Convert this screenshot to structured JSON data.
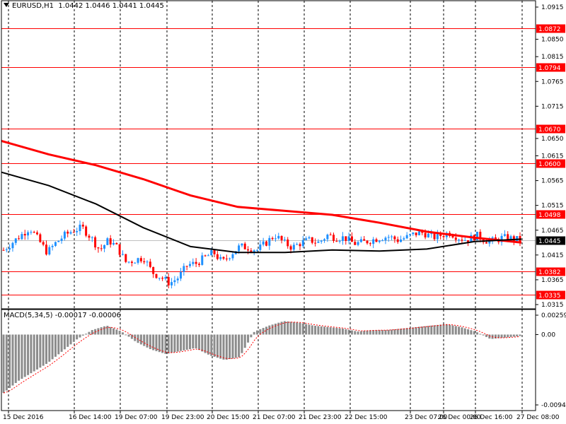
{
  "header": {
    "symbol_tf": "EURUSD,H1",
    "ohlc": "1.0442 1.0446 1.0441 1.0445"
  },
  "macd_header": "MACD(5,34,5) -0.00017 -0.00006",
  "chart_data": [
    {
      "type": "candlestick",
      "symbol": "EURUSD",
      "timeframe": "H1",
      "ylim": [
        1.0315,
        1.0915
      ],
      "y_ticks": [
        "1.0915",
        "1.0850",
        "1.0815",
        "1.0765",
        "1.0715",
        "1.0650",
        "1.0615",
        "1.0565",
        "1.0515",
        "1.0465",
        "1.0415",
        "1.0365",
        "1.0315"
      ],
      "x_labels": [
        "15 Dec 2016",
        "16 Dec 14:00",
        "19 Dec 07:00",
        "19 Dec 23:00",
        "20 Dec 15:00",
        "21 Dec 07:00",
        "21 Dec 23:00",
        "22 Dec 15:00",
        "23 Dec 07:00",
        "26 Dec 00:00",
        "26 Dec 16:00",
        "27 Dec 08:00"
      ],
      "levels": [
        "1.0872",
        "1.0794",
        "1.0670",
        "1.0600",
        "1.0498",
        "1.0382",
        "1.0335"
      ],
      "current_price": "1.0445",
      "close_path": [
        1.0425,
        1.044,
        1.0455,
        1.047,
        1.0445,
        1.042,
        1.044,
        1.0455,
        1.0465,
        1.047,
        1.045,
        1.0425,
        1.0445,
        1.043,
        1.04,
        1.0405,
        1.041,
        1.038,
        1.037,
        1.0358,
        1.037,
        1.0395,
        1.0398,
        1.041,
        1.042,
        1.04,
        1.0418,
        1.0432,
        1.043,
        1.0425,
        1.044,
        1.0455,
        1.044,
        1.043,
        1.044,
        1.0445,
        1.044,
        1.0455,
        1.045,
        1.045,
        1.0438,
        1.044,
        1.0445,
        1.045,
        1.0452,
        1.0445,
        1.045,
        1.0458,
        1.046,
        1.045,
        1.0455,
        1.046,
        1.045,
        1.0445,
        1.0455,
        1.0445,
        1.0443,
        1.045,
        1.0448,
        1.0445
      ],
      "series": [
        {
          "name": "MA red",
          "color": "#ff0000",
          "values": [
            1.0645,
            1.0618,
            1.0596,
            1.0568,
            1.0535,
            1.0512,
            1.0504,
            1.0496,
            1.048,
            1.0462,
            1.045,
            1.044
          ]
        },
        {
          "name": "MA black",
          "color": "#000000",
          "values": [
            1.0582,
            1.0555,
            1.0518,
            1.047,
            1.0432,
            1.042,
            1.042,
            1.0425,
            1.0423,
            1.0427,
            1.0442,
            1.0447
          ]
        }
      ]
    },
    {
      "type": "histogram",
      "name": "MACD(5,34,5)",
      "ylim": [
        -0.0094,
        0.00259
      ],
      "y_ticks": [
        "0.00259",
        "0.00",
        "-0.0094"
      ],
      "values": [
        -0.0078,
        -0.0062,
        -0.005,
        -0.0038,
        -0.0022,
        -0.0006,
        0.0006,
        0.0012,
        0.0004,
        -0.001,
        -0.002,
        -0.0026,
        -0.0022,
        -0.0018,
        -0.0028,
        -0.0034,
        -0.003,
        0.0004,
        0.0012,
        0.0018,
        0.0016,
        0.0012,
        0.001,
        0.0008,
        0.0004,
        0.0006,
        0.0006,
        0.0008,
        0.001,
        0.0012,
        0.0014,
        0.001,
        0.0004,
        -0.0006,
        -0.0004,
        -0.0002
      ]
    }
  ]
}
